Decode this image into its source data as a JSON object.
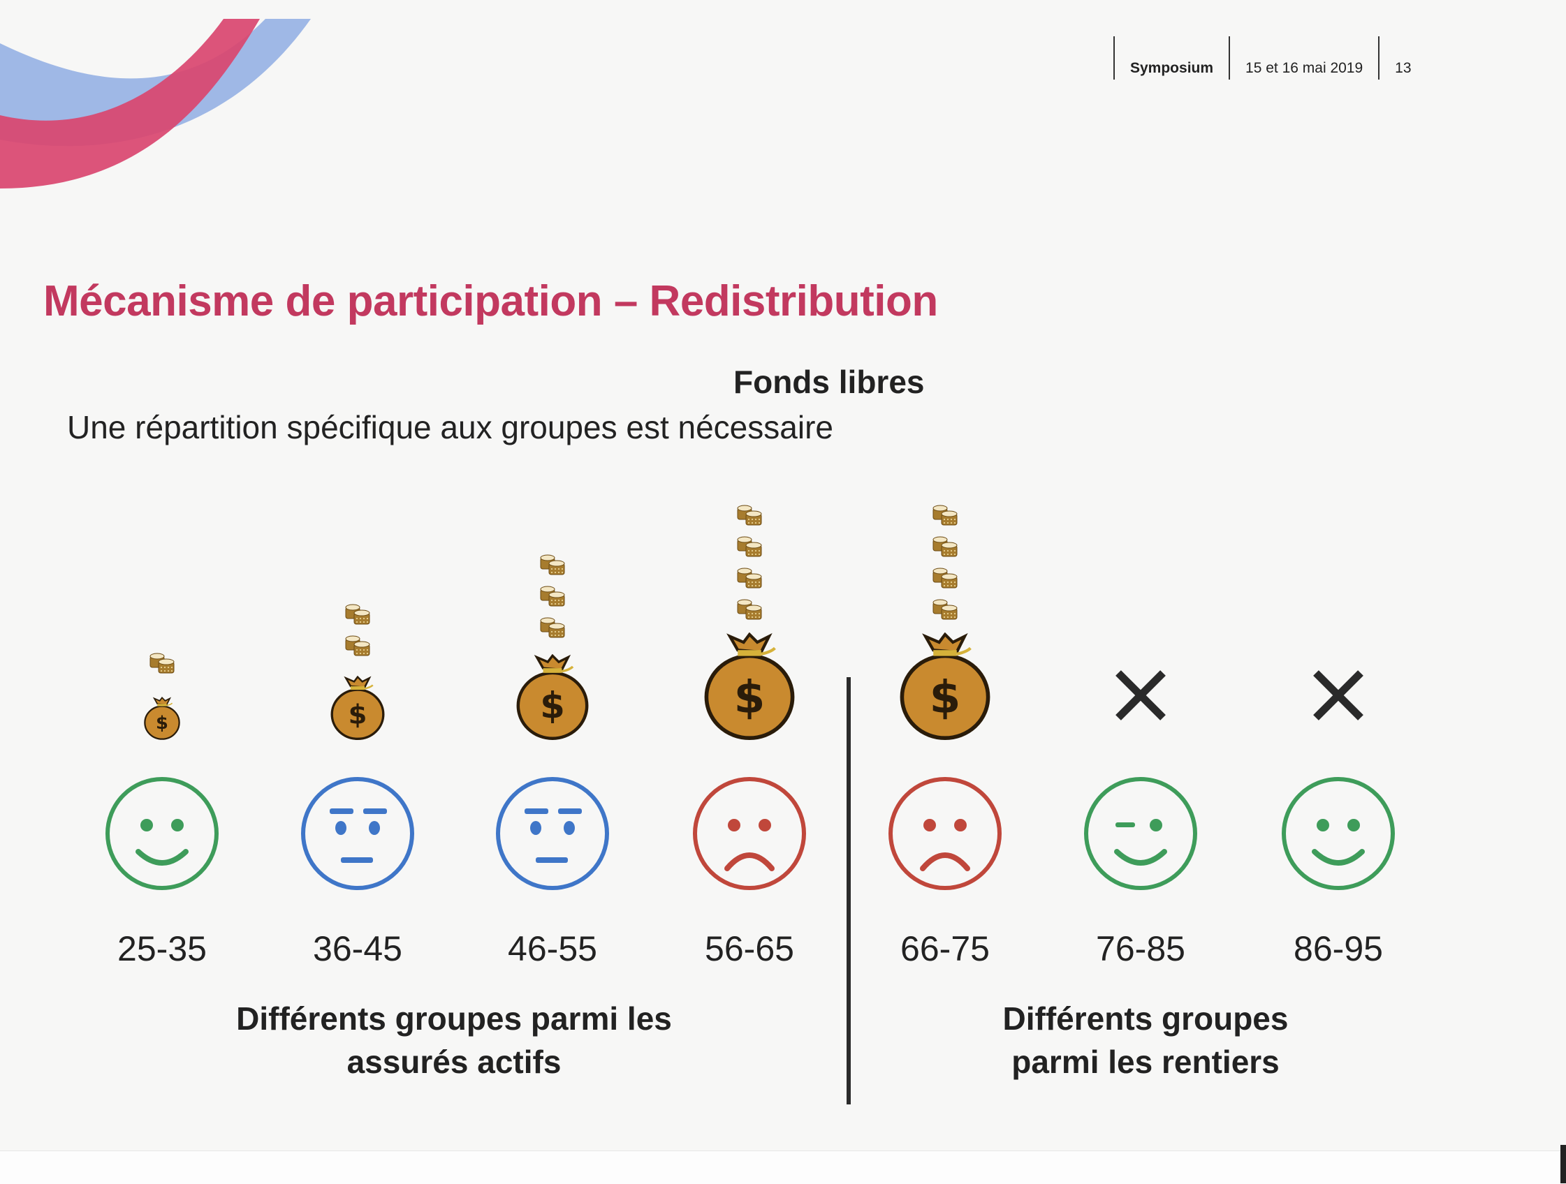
{
  "header": {
    "event": "Symposium",
    "dates": "15 et 16 mai 2019",
    "page_number": "13"
  },
  "slide": {
    "title": "Mécanisme de participation – Redistribution",
    "section_label": "Fonds libres",
    "subtitle": "Une répartition spécifique aux groupes est nécessaire"
  },
  "colors": {
    "title": "#c2395f",
    "deco_pink": "#d9456f",
    "deco_blue": "#9fb8e6",
    "face_happy": "#3e9c5a",
    "face_neutral": "#3f76c8",
    "face_sad": "#c0473b",
    "bag": "#c98a2f",
    "coin": "#a77c2e"
  },
  "groups": [
    {
      "age_range": "25-35",
      "coin_stacks": 1,
      "bag": "small",
      "mood": "happy",
      "category": "active"
    },
    {
      "age_range": "36-45",
      "coin_stacks": 2,
      "bag": "medium",
      "mood": "neutral",
      "category": "active"
    },
    {
      "age_range": "46-55",
      "coin_stacks": 3,
      "bag": "large",
      "mood": "neutral",
      "category": "active"
    },
    {
      "age_range": "56-65",
      "coin_stacks": 4,
      "bag": "xlarge",
      "mood": "sad",
      "category": "active"
    },
    {
      "age_range": "66-75",
      "coin_stacks": 4,
      "bag": "xlarge",
      "mood": "sad",
      "category": "retired"
    },
    {
      "age_range": "76-85",
      "coin_stacks": 0,
      "bag": "none",
      "mood": "wink",
      "category": "retired"
    },
    {
      "age_range": "86-95",
      "coin_stacks": 0,
      "bag": "none",
      "mood": "happy",
      "category": "retired"
    }
  ],
  "captions": {
    "active_line1": "Différents groupes parmi les",
    "active_line2": "assurés actifs",
    "retired_line1": "Différents groupes",
    "retired_line2": "parmi les rentiers"
  }
}
